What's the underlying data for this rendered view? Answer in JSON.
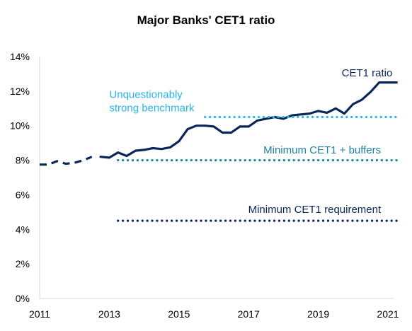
{
  "chart_data": {
    "type": "line",
    "title": "Major Banks' CET1 ratio",
    "xlabel": "",
    "ylabel": "",
    "xlim": [
      2011,
      2021
    ],
    "ylim": [
      0,
      14
    ],
    "x_ticks": [
      2011,
      2013,
      2015,
      2017,
      2019,
      2021
    ],
    "x_tick_labels": [
      "2011",
      "2013",
      "2015",
      "2017",
      "2019",
      "2021"
    ],
    "y_ticks": [
      0,
      2,
      4,
      6,
      8,
      10,
      12,
      14
    ],
    "y_tick_labels": [
      "0%",
      "2%",
      "4%",
      "6%",
      "8%",
      "10%",
      "12%",
      "14%"
    ],
    "grid": false,
    "series": [
      {
        "name": "CET1 ratio",
        "style": "dashed",
        "color": "#0b2559",
        "x": [
          2011.0,
          2011.25,
          2011.5,
          2011.75,
          2012.0,
          2012.25,
          2012.5
        ],
        "y": [
          7.75,
          7.75,
          7.95,
          7.8,
          7.85,
          8.0,
          8.2
        ]
      },
      {
        "name": "CET1 ratio",
        "style": "solid",
        "color": "#0b2559",
        "x": [
          2012.75,
          2013.0,
          2013.25,
          2013.5,
          2013.75,
          2014.0,
          2014.25,
          2014.5,
          2014.75,
          2015.0,
          2015.25,
          2015.5,
          2015.75,
          2016.0,
          2016.25,
          2016.5,
          2016.75,
          2017.0,
          2017.25,
          2017.5,
          2017.75,
          2018.0,
          2018.25,
          2018.5,
          2018.75,
          2019.0,
          2019.25,
          2019.5,
          2019.75,
          2020.0,
          2020.25,
          2020.5,
          2020.75,
          2021.0,
          2021.25
        ],
        "y": [
          8.2,
          8.15,
          8.45,
          8.25,
          8.55,
          8.6,
          8.7,
          8.65,
          8.75,
          9.1,
          9.8,
          10.0,
          10.0,
          9.95,
          9.6,
          9.6,
          9.95,
          9.95,
          10.3,
          10.4,
          10.5,
          10.4,
          10.6,
          10.65,
          10.7,
          10.85,
          10.75,
          11.0,
          10.7,
          11.25,
          11.5,
          11.95,
          12.5,
          12.5,
          12.5
        ]
      },
      {
        "name": "Unquestionably strong benchmark",
        "style": "dotted",
        "color": "#29b5e8",
        "x": [
          2015.75,
          2021.25
        ],
        "y": [
          10.5,
          10.5
        ]
      },
      {
        "name": "Minimum CET1 + buffers",
        "style": "dotted",
        "color": "#14898e",
        "x": [
          2013.25,
          2021.25
        ],
        "y": [
          8.0,
          8.0
        ]
      },
      {
        "name": "Minimum CET1 requirement",
        "style": "dotted",
        "color": "#0b2559",
        "x": [
          2013.25,
          2021.25
        ],
        "y": [
          4.5,
          4.5
        ]
      }
    ],
    "annotations": [
      {
        "lines": [
          "CET1 ratio"
        ],
        "color": "#0b2559",
        "x": 2020.4,
        "y": 12.85,
        "anchor": "middle"
      },
      {
        "lines": [
          "Unquestionably",
          "strong benchmark"
        ],
        "color": "#29b5e8",
        "x": 2013.0,
        "y": 11.6,
        "anchor": "start"
      },
      {
        "lines": [
          "Minimum CET1 + buffers"
        ],
        "color": "#1f7fa5",
        "x": 2020.8,
        "y": 8.4,
        "anchor": "end"
      },
      {
        "lines": [
          "Minimum CET1 requirement"
        ],
        "color": "#0b2559",
        "x": 2020.8,
        "y": 4.95,
        "anchor": "end"
      }
    ]
  }
}
